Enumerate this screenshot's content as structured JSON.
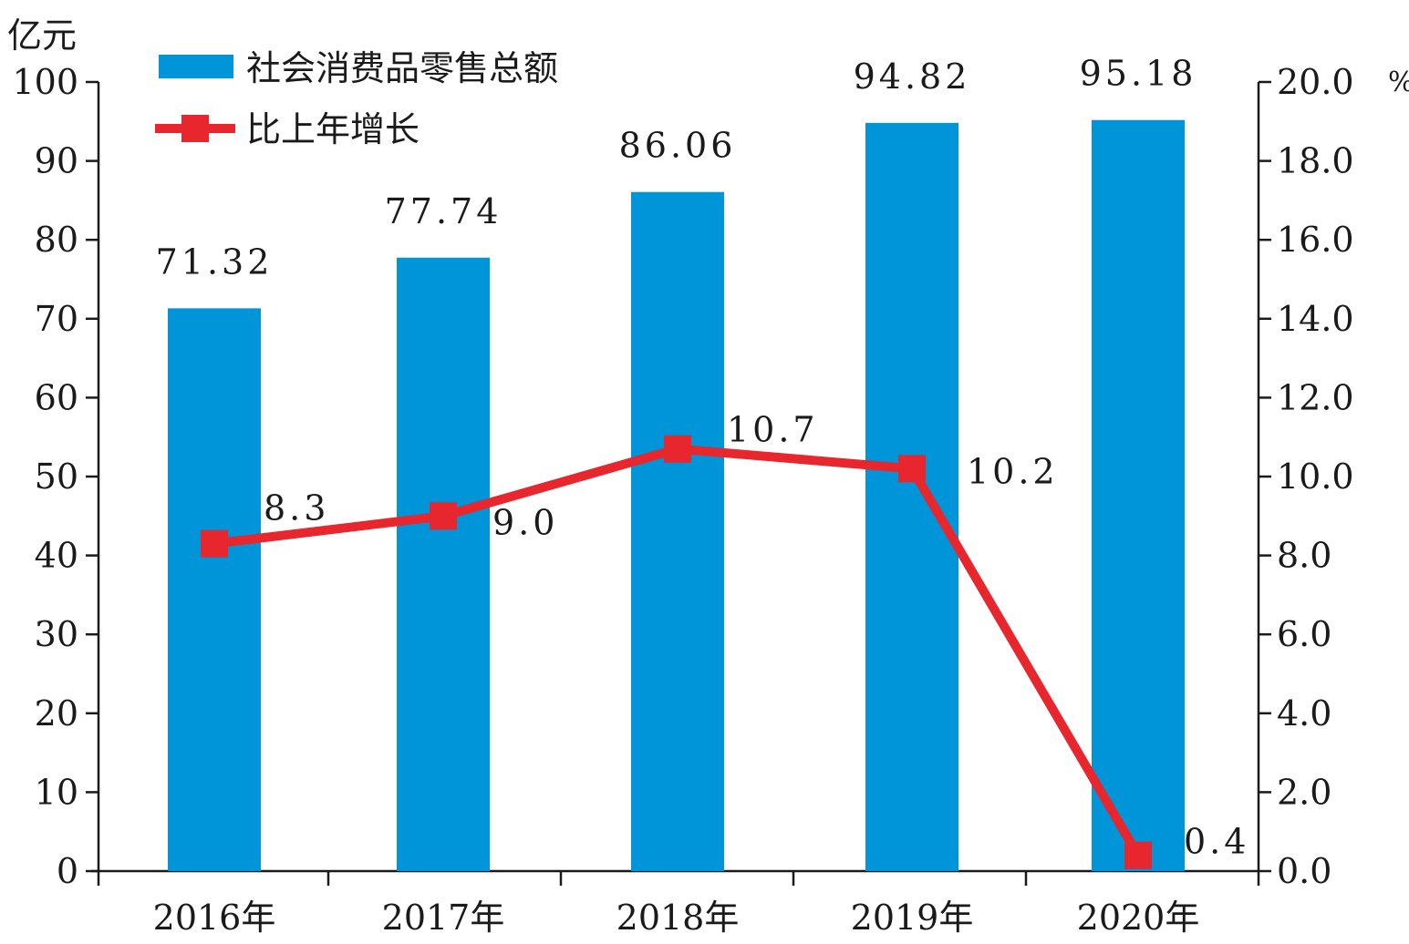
{
  "chart_data": {
    "type": "bar",
    "categories": [
      "2016年",
      "2017年",
      "2018年",
      "2019年",
      "2020年"
    ],
    "left_axis": {
      "unit": "亿元",
      "ylim": [
        0,
        100
      ],
      "ticks": [
        "0",
        "10",
        "20",
        "30",
        "40",
        "50",
        "60",
        "70",
        "80",
        "90",
        "100"
      ]
    },
    "right_axis": {
      "unit": "%",
      "ylim": [
        0,
        20
      ],
      "ticks": [
        "0.0",
        "2.0",
        "4.0",
        "6.0",
        "8.0",
        "10.0",
        "12.0",
        "14.0",
        "16.0",
        "18.0",
        "20.0"
      ]
    },
    "series": [
      {
        "name": "社会消费品零售总额",
        "type": "bar",
        "axis": "left",
        "color": "#0094d8",
        "values": [
          71.32,
          77.74,
          86.06,
          94.82,
          95.18
        ],
        "labels": [
          "71.32",
          "77.74",
          "86.06",
          "94.82",
          "95.18"
        ]
      },
      {
        "name": "比上年增长",
        "type": "line",
        "axis": "right",
        "color": "#e8262d",
        "values": [
          8.3,
          9.0,
          10.7,
          10.2,
          0.4
        ],
        "labels": [
          "8.3",
          "9.0",
          "10.7",
          "10.2",
          "0.4"
        ]
      }
    ],
    "legend": "top-left",
    "grid": false
  }
}
